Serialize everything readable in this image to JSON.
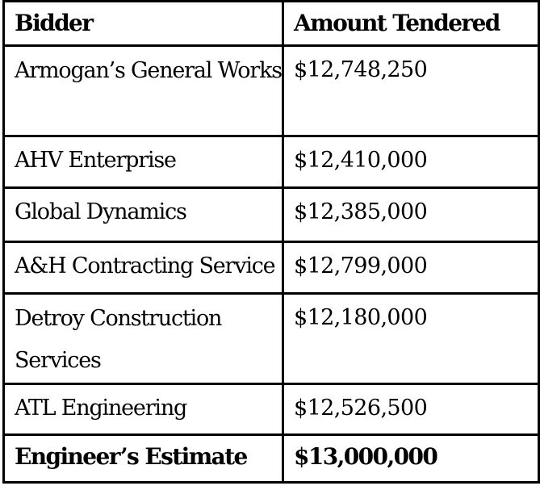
{
  "table": {
    "headers": {
      "bidder": "Bidder",
      "amount": "Amount Tendered"
    },
    "rows": [
      {
        "bidder": "Armogan’s General Works",
        "amount": "$12,748,250"
      },
      {
        "bidder": "AHV Enterprise",
        "amount": "$12,410,000"
      },
      {
        "bidder": "Global Dynamics",
        "amount": "$12,385,000"
      },
      {
        "bidder": "A&H Contracting Service",
        "amount": "$12,799,000"
      },
      {
        "bidder": "Detroy Construction Services",
        "amount": "$12,180,000"
      },
      {
        "bidder": "ATL Engineering",
        "amount": "$12,526,500"
      }
    ],
    "total": {
      "bidder": "Engineer’s Estimate",
      "amount": "$13,000,000"
    }
  }
}
